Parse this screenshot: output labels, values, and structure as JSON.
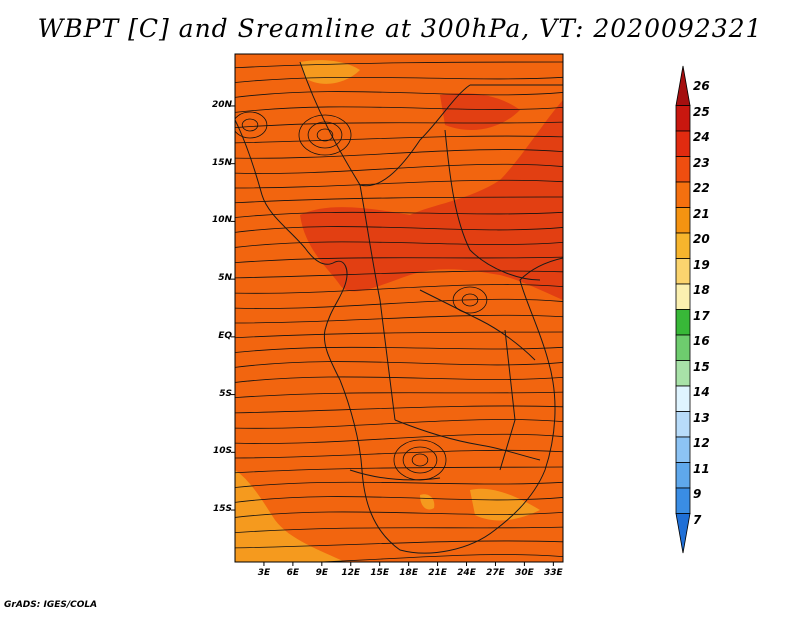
{
  "title": "WBPT [C] and Sreamline at 300hPa, VT: 2020092321",
  "credit": "GrADS: IGES/COLA",
  "map": {
    "lat_labels": [
      "20N",
      "15N",
      "10N",
      "5N",
      "EQ",
      "5S",
      "10S",
      "15S"
    ],
    "lon_labels": [
      "3E",
      "6E",
      "9E",
      "12E",
      "15E",
      "18E",
      "21E",
      "24E",
      "27E",
      "30E",
      "33E"
    ],
    "lat_values": [
      20,
      15,
      10,
      5,
      0,
      -5,
      -10,
      -15
    ],
    "lon_values": [
      3,
      6,
      9,
      12,
      15,
      18,
      21,
      24,
      27,
      30,
      33
    ],
    "lat_range": [
      -19.5,
      24.5
    ],
    "lon_range": [
      0,
      34
    ],
    "base_color": "#f2650f",
    "warm_color": "#e23f12",
    "cool_color": "#f59a1e",
    "coast_color": "#1a1a1a",
    "stream_color": "#111111"
  },
  "colorbar": {
    "labels": [
      "26",
      "25",
      "24",
      "23",
      "22",
      "21",
      "20",
      "19",
      "18",
      "17",
      "16",
      "15",
      "14",
      "13",
      "12",
      "11",
      "9",
      "7"
    ],
    "colors": [
      "#a50f0f",
      "#c8170f",
      "#e12b10",
      "#ef4e10",
      "#f5700f",
      "#f59311",
      "#f7b52d",
      "#fbd46e",
      "#fbf0b0",
      "#38b838",
      "#6ecc6e",
      "#a8e2a8",
      "#dff4ff",
      "#b8dcfa",
      "#8cc3f4",
      "#5fa8ec",
      "#3a8de4",
      "#1f6fd6"
    ]
  }
}
